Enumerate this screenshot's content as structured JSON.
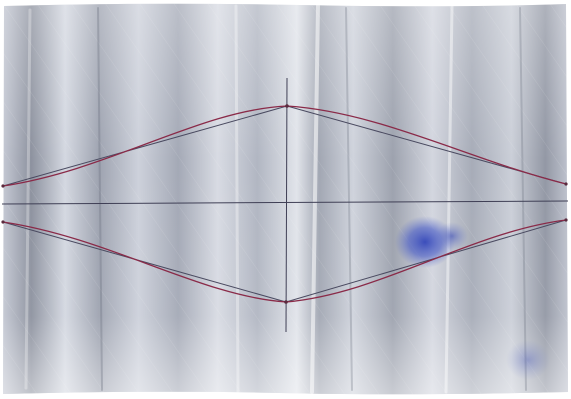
{
  "scene": {
    "subject": "drawing-on-crumpled-foil",
    "colors": {
      "foil_light": "#d9dde6",
      "foil_mid": "#a9aebb",
      "foil_dark": "#7b808e",
      "pencil_line": "#3f3f55",
      "red_curve": "#8a2a48",
      "ink_stain": "#3a4fc0",
      "paper_edge": "#ffffff"
    }
  }
}
